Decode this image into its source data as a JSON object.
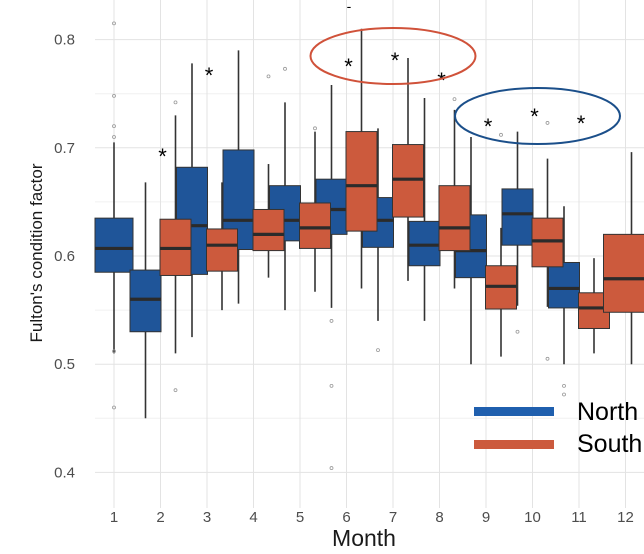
{
  "chart_data": {
    "type": "boxplot",
    "xlabel": "Month",
    "ylabel": "Fulton's condition factor",
    "ylim": [
      0.38,
      0.82
    ],
    "yticks": [
      "0.4",
      "0.5",
      "0.6",
      "0.7",
      "0.8"
    ],
    "ytick_values": [
      0.4,
      0.5,
      0.6,
      0.7,
      0.8
    ],
    "categories": [
      "1",
      "2",
      "3",
      "4",
      "5",
      "6",
      "7",
      "8",
      "9",
      "10",
      "11",
      "12"
    ],
    "grid": true,
    "legend_position": "bottom-right",
    "series": [
      {
        "name": "North",
        "color": "#1f5599",
        "boxes": [
          {
            "month": "1",
            "low": 0.51,
            "q1": 0.585,
            "median": 0.607,
            "q3": 0.635,
            "high": 0.705,
            "outliers": [
              0.815,
              0.748,
              0.72,
              0.71,
              0.512,
              0.46
            ]
          },
          {
            "month": "2",
            "low": 0.45,
            "q1": 0.53,
            "median": 0.56,
            "q3": 0.587,
            "high": 0.668,
            "outliers": []
          },
          {
            "month": "3",
            "low": 0.525,
            "q1": 0.583,
            "median": 0.628,
            "q3": 0.682,
            "high": 0.778,
            "outliers": []
          },
          {
            "month": "4",
            "low": 0.556,
            "q1": 0.606,
            "median": 0.633,
            "q3": 0.698,
            "high": 0.79,
            "outliers": []
          },
          {
            "month": "5",
            "low": 0.55,
            "q1": 0.614,
            "median": 0.633,
            "q3": 0.665,
            "high": 0.742,
            "outliers": [
              0.773
            ]
          },
          {
            "month": "6",
            "low": 0.552,
            "q1": 0.62,
            "median": 0.643,
            "q3": 0.671,
            "high": 0.758,
            "outliers": [
              0.54,
              0.48,
              0.404
            ]
          },
          {
            "month": "7",
            "low": 0.54,
            "q1": 0.608,
            "median": 0.633,
            "q3": 0.654,
            "high": 0.718,
            "outliers": [
              0.513
            ]
          },
          {
            "month": "8",
            "low": 0.54,
            "q1": 0.591,
            "median": 0.61,
            "q3": 0.632,
            "high": 0.746,
            "outliers": []
          },
          {
            "month": "9",
            "low": 0.5,
            "q1": 0.58,
            "median": 0.605,
            "q3": 0.638,
            "high": 0.71,
            "outliers": []
          },
          {
            "month": "10",
            "low": 0.554,
            "q1": 0.61,
            "median": 0.639,
            "q3": 0.662,
            "high": 0.715,
            "outliers": [
              0.53
            ]
          },
          {
            "month": "11",
            "low": 0.5,
            "q1": 0.552,
            "median": 0.57,
            "q3": 0.594,
            "high": 0.646,
            "outliers": [
              0.48,
              0.472
            ]
          },
          {
            "month": "12",
            "low": null,
            "q1": null,
            "median": null,
            "q3": null,
            "high": null,
            "outliers": []
          }
        ]
      },
      {
        "name": "South",
        "color": "#cc5a3d",
        "boxes": [
          {
            "month": "1",
            "low": null,
            "q1": null,
            "median": null,
            "q3": null,
            "high": null,
            "outliers": []
          },
          {
            "month": "2",
            "low": 0.51,
            "q1": 0.582,
            "median": 0.607,
            "q3": 0.634,
            "high": 0.73,
            "outliers": [
              0.742,
              0.476
            ]
          },
          {
            "month": "3",
            "low": 0.55,
            "q1": 0.586,
            "median": 0.61,
            "q3": 0.625,
            "high": 0.668,
            "outliers": []
          },
          {
            "month": "4",
            "low": 0.58,
            "q1": 0.605,
            "median": 0.62,
            "q3": 0.643,
            "high": 0.685,
            "outliers": [
              0.766
            ]
          },
          {
            "month": "5",
            "low": 0.567,
            "q1": 0.607,
            "median": 0.626,
            "q3": 0.649,
            "high": 0.715,
            "outliers": [
              0.718
            ]
          },
          {
            "month": "6",
            "low": 0.57,
            "q1": 0.623,
            "median": 0.665,
            "q3": 0.715,
            "high": 0.81,
            "outliers": []
          },
          {
            "month": "7",
            "low": 0.577,
            "q1": 0.636,
            "median": 0.671,
            "q3": 0.703,
            "high": 0.783,
            "outliers": []
          },
          {
            "month": "8",
            "low": 0.57,
            "q1": 0.605,
            "median": 0.626,
            "q3": 0.665,
            "high": 0.735,
            "outliers": [
              0.745
            ]
          },
          {
            "month": "9",
            "low": 0.507,
            "q1": 0.551,
            "median": 0.572,
            "q3": 0.591,
            "high": 0.626,
            "outliers": [
              0.712
            ]
          },
          {
            "month": "10",
            "low": 0.553,
            "q1": 0.59,
            "median": 0.614,
            "q3": 0.635,
            "high": 0.69,
            "outliers": [
              0.723,
              0.505
            ]
          },
          {
            "month": "11",
            "low": 0.51,
            "q1": 0.533,
            "median": 0.552,
            "q3": 0.566,
            "high": 0.598,
            "outliers": []
          },
          {
            "month": "12",
            "low": 0.5,
            "q1": 0.548,
            "median": 0.579,
            "q3": 0.62,
            "high": 0.696,
            "outliers": []
          }
        ]
      }
    ],
    "significance_months": [
      "2",
      "3",
      "6",
      "7",
      "8",
      "9",
      "10",
      "11"
    ],
    "highlight_groups": [
      {
        "months": [
          "6",
          "7",
          "8"
        ],
        "color": "#d0523a"
      },
      {
        "months": [
          "9",
          "10",
          "11"
        ],
        "color": "#1b4f8a"
      }
    ],
    "annotation_star": "*",
    "top_mark": "-"
  }
}
